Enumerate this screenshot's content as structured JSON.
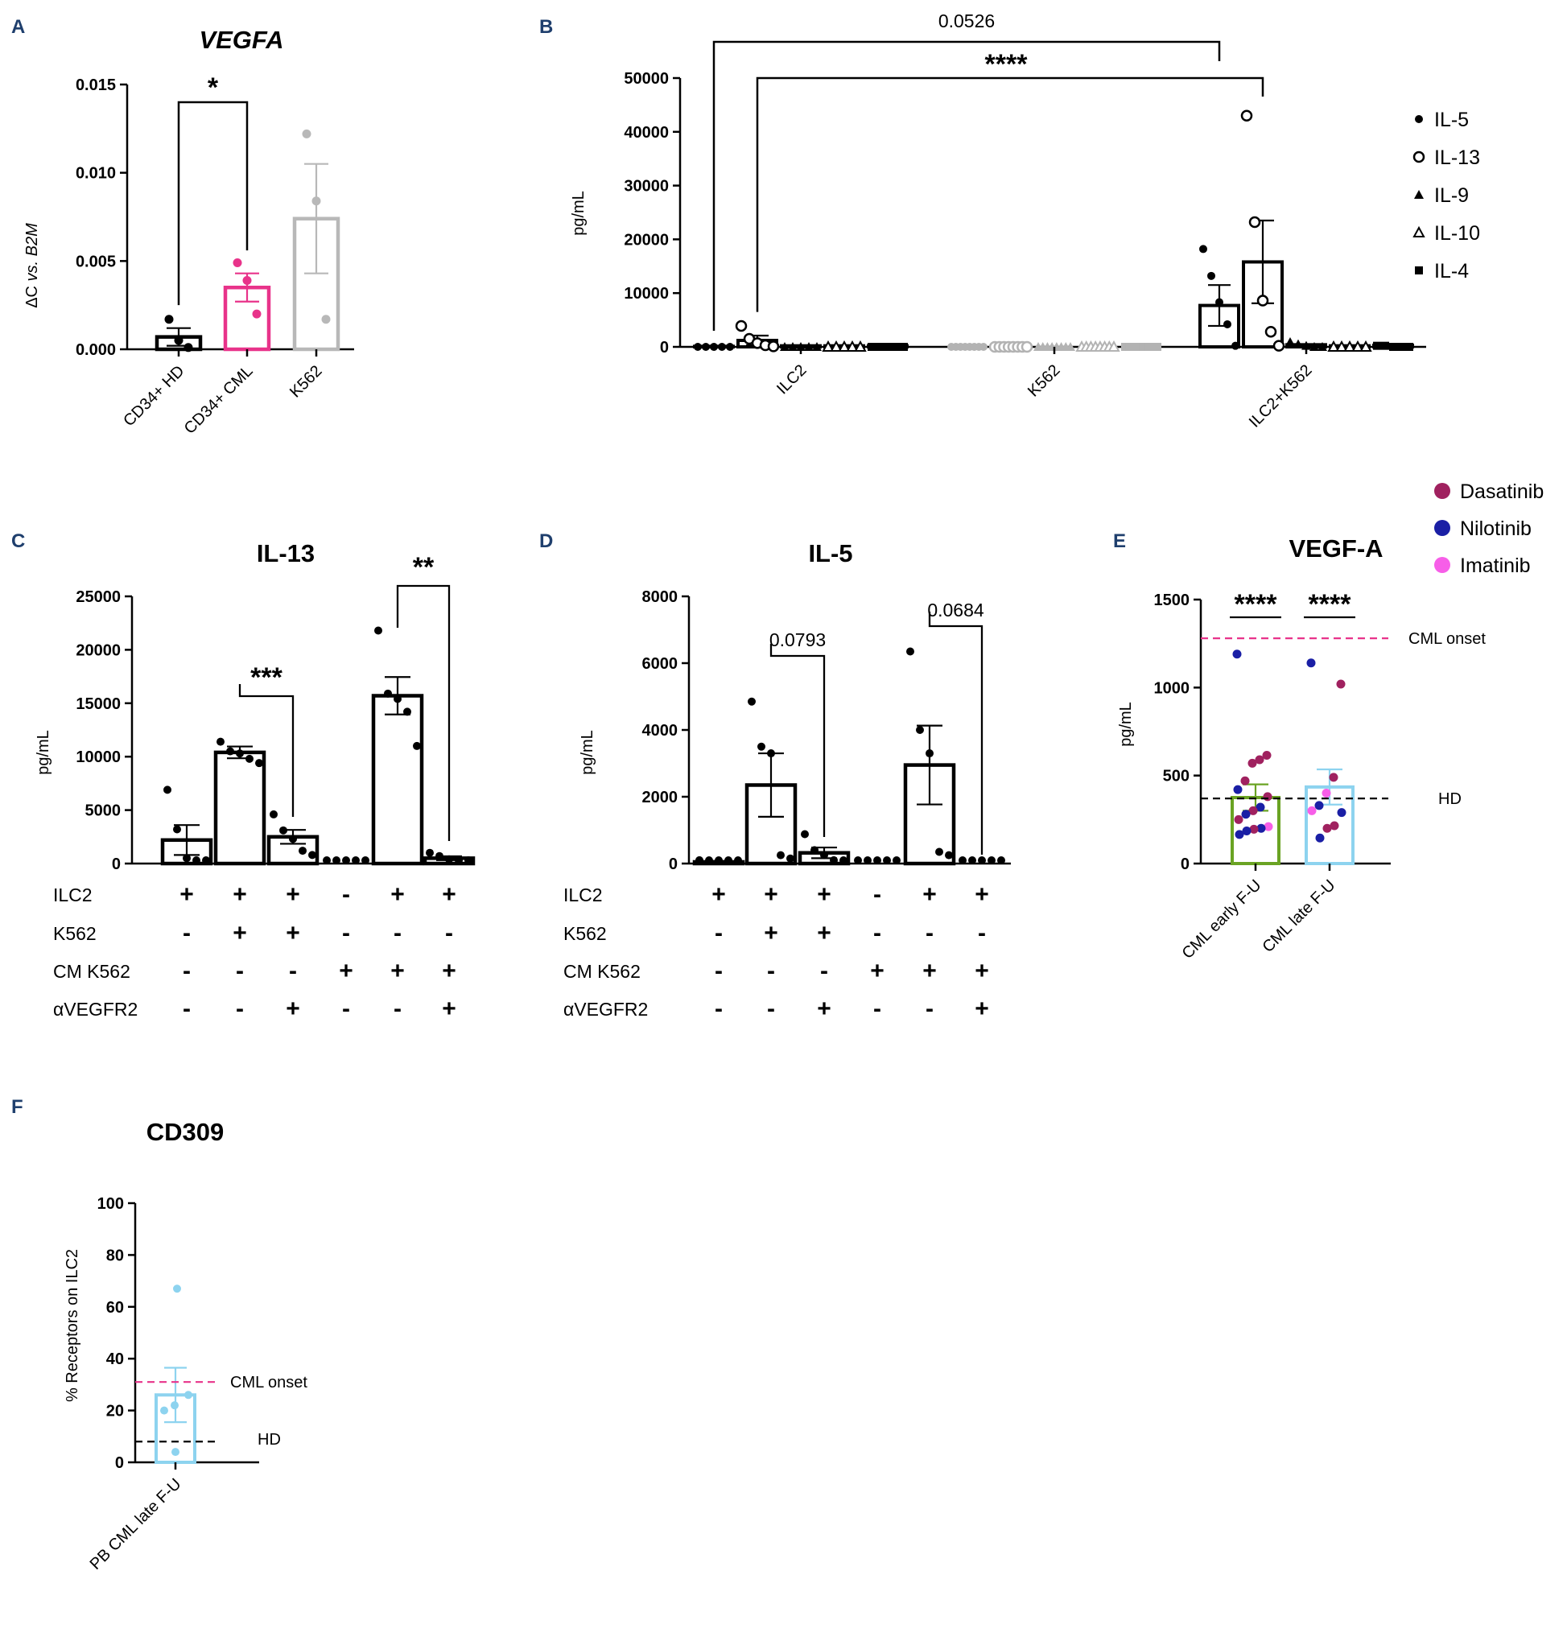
{
  "panel_labels": [
    "A",
    "B",
    "C",
    "D",
    "E",
    "F"
  ],
  "chart_data": [
    {
      "panel": "A",
      "type": "bar",
      "title": "VEGFA",
      "ylabel": "ΔC vs. B2M",
      "ylabel_parts": [
        "ΔC ",
        "vs. ",
        "B2M"
      ],
      "ylim": [
        0,
        0.015
      ],
      "yticks": [
        "0.000",
        "0.005",
        "0.010",
        "0.015"
      ],
      "categories": [
        "CD34+ HD",
        "CD34+ CML",
        "K562"
      ],
      "colors": [
        "#000000",
        "#e8338a",
        "#b8b8b8"
      ],
      "values": [
        0.0007,
        0.0035,
        0.0074
      ],
      "errors": [
        0.0005,
        0.0008,
        0.0031
      ],
      "points": [
        [
          0.0017,
          0.0005,
          0.0001
        ],
        [
          0.0049,
          0.0039,
          0.002
        ],
        [
          0.0122,
          0.0084,
          0.0017
        ]
      ],
      "significance": [
        {
          "from": 0,
          "to": 1,
          "label": "*"
        }
      ]
    },
    {
      "panel": "B",
      "type": "bar",
      "title": "",
      "ylabel": "pg/mL",
      "ylim": [
        0,
        50000
      ],
      "yticks": [
        "0",
        "10000",
        "20000",
        "30000",
        "40000",
        "50000"
      ],
      "categories": [
        "ILC2",
        "K562",
        "ILC2+K562"
      ],
      "series": [
        {
          "name": "IL-5",
          "marker": "filled-circle",
          "values": [
            100,
            0,
            7700
          ],
          "errors": [
            50,
            0,
            3800
          ],
          "points": [
            [
              0,
              0,
              0,
              0,
              0
            ],
            [
              0,
              0,
              0,
              0,
              0,
              0,
              0,
              0
            ],
            [
              18200,
              13200,
              8300,
              4200,
              200
            ]
          ]
        },
        {
          "name": "IL-13",
          "marker": "open-circle",
          "values": [
            1200,
            0,
            15800
          ],
          "errors": [
            900,
            0,
            7700
          ],
          "points": [
            [
              3900,
              1500,
              700,
              300,
              100
            ],
            [
              0,
              0,
              0,
              0,
              0,
              0,
              0,
              0
            ],
            [
              43000,
              23200,
              8600,
              2800,
              200
            ]
          ]
        },
        {
          "name": "IL-9",
          "marker": "filled-triangle",
          "values": [
            200,
            0,
            400
          ],
          "errors": [
            0,
            0,
            0
          ],
          "points": [
            [
              0,
              0,
              0,
              0,
              0
            ],
            [
              0,
              0,
              0,
              0,
              0,
              0,
              0,
              0
            ],
            [
              900,
              500,
              200,
              0,
              0
            ]
          ]
        },
        {
          "name": "IL-10",
          "marker": "open-triangle",
          "values": [
            200,
            0,
            200
          ],
          "errors": [
            0,
            0,
            0
          ],
          "points": [
            [
              0,
              0,
              0,
              0,
              0
            ],
            [
              0,
              0,
              0,
              0,
              0,
              0,
              0,
              0
            ],
            [
              0,
              0,
              0,
              0,
              0
            ]
          ]
        },
        {
          "name": "IL-4",
          "marker": "filled-square",
          "values": [
            200,
            0,
            300
          ],
          "errors": [
            0,
            0,
            0
          ],
          "points": [
            [
              0,
              0,
              0,
              0,
              0
            ],
            [
              0,
              0,
              0,
              0,
              0,
              0,
              0,
              0
            ],
            [
              200,
              200,
              0,
              0,
              0
            ]
          ]
        }
      ],
      "significance": [
        {
          "from": "ILC2 IL-5",
          "to": "ILC2+K562 IL-5",
          "label": "0.0526"
        },
        {
          "from": "ILC2 IL-13",
          "to": "ILC2+K562 IL-13",
          "label": "****"
        }
      ]
    },
    {
      "panel": "C",
      "type": "bar",
      "title": "IL-13",
      "ylabel": "pg/mL",
      "ylim": [
        0,
        25000
      ],
      "yticks": [
        "0",
        "5000",
        "10000",
        "15000",
        "20000",
        "25000"
      ],
      "values": [
        2200,
        10400,
        2500,
        0,
        15700,
        500
      ],
      "errors": [
        1400,
        550,
        650,
        0,
        1750,
        180
      ],
      "points": [
        [
          6900,
          3200,
          500,
          300,
          100
        ],
        [
          11400,
          10500,
          10300,
          9800,
          9400
        ],
        [
          4600,
          3100,
          2300,
          1200,
          800
        ],
        [
          0,
          0,
          0,
          0,
          0
        ],
        [
          21800,
          15900,
          15400,
          14200,
          11000
        ],
        [
          1000,
          700,
          400,
          200,
          100
        ]
      ],
      "significance": [
        {
          "from": 1,
          "to": 2,
          "label": "***"
        },
        {
          "from": 4,
          "to": 5,
          "label": "**"
        }
      ],
      "condition_rows": [
        {
          "label": "ILC2",
          "signs": [
            "+",
            "+",
            "+",
            "-",
            "+",
            "+"
          ]
        },
        {
          "label": "K562",
          "signs": [
            "-",
            "+",
            "+",
            "-",
            "-",
            "-"
          ]
        },
        {
          "label": "CM K562",
          "signs": [
            "-",
            "-",
            "-",
            "+",
            "+",
            "+"
          ]
        },
        {
          "label": "αVEGFR2",
          "signs": [
            "-",
            "-",
            "+",
            "-",
            "-",
            "+"
          ]
        }
      ]
    },
    {
      "panel": "D",
      "type": "bar",
      "title": "IL-5",
      "ylabel": "pg/mL",
      "ylim": [
        0,
        8000
      ],
      "yticks": [
        "0",
        "2000",
        "4000",
        "6000",
        "8000"
      ],
      "values": [
        50,
        2350,
        320,
        0,
        2950,
        0
      ],
      "errors": [
        30,
        950,
        160,
        0,
        1180,
        0
      ],
      "points": [
        [
          100,
          50,
          20,
          0,
          0
        ],
        [
          4850,
          3500,
          3300,
          250,
          150
        ],
        [
          880,
          400,
          250,
          100,
          50
        ],
        [
          0,
          0,
          0,
          0,
          0
        ],
        [
          6350,
          4000,
          3300,
          350,
          250
        ],
        [
          0,
          0,
          0,
          0,
          0
        ]
      ],
      "significance": [
        {
          "from": 1,
          "to": 2,
          "label": "0.0793"
        },
        {
          "from": 4,
          "to": 5,
          "label": "0.0684"
        }
      ],
      "condition_rows": [
        {
          "label": "ILC2",
          "signs": [
            "+",
            "+",
            "+",
            "-",
            "+",
            "+"
          ]
        },
        {
          "label": "K562",
          "signs": [
            "-",
            "+",
            "+",
            "-",
            "-",
            "-"
          ]
        },
        {
          "label": "CM K562",
          "signs": [
            "-",
            "-",
            "-",
            "+",
            "+",
            "+"
          ]
        },
        {
          "label": "αVEGFR2",
          "signs": [
            "-",
            "-",
            "+",
            "-",
            "-",
            "+"
          ]
        }
      ]
    },
    {
      "panel": "E",
      "type": "bar",
      "title": "VEGF-A",
      "ylabel": "pg/mL",
      "ylim": [
        0,
        1500
      ],
      "yticks": [
        "0",
        "500",
        "1000",
        "1500"
      ],
      "categories": [
        "CML early F-U",
        "CML late F-U"
      ],
      "bar_colors": [
        "#6aa323",
        "#8dd3ef"
      ],
      "values": [
        375,
        435
      ],
      "errors": [
        75,
        100
      ],
      "points": [
        [
          {
            "y": 1190,
            "drug": "Nilotinib"
          },
          {
            "y": 615,
            "drug": "Dasatinib"
          },
          {
            "y": 590,
            "drug": "Dasatinib"
          },
          {
            "y": 570,
            "drug": "Dasatinib"
          },
          {
            "y": 470,
            "drug": "Dasatinib"
          },
          {
            "y": 420,
            "drug": "Nilotinib"
          },
          {
            "y": 380,
            "drug": "Dasatinib"
          },
          {
            "y": 320,
            "drug": "Nilotinib"
          },
          {
            "y": 300,
            "drug": "Dasatinib"
          },
          {
            "y": 280,
            "drug": "Nilotinib"
          },
          {
            "y": 250,
            "drug": "Dasatinib"
          },
          {
            "y": 210,
            "drug": "Imatinib"
          },
          {
            "y": 200,
            "drug": "Nilotinib"
          },
          {
            "y": 195,
            "drug": "Dasatinib"
          },
          {
            "y": 185,
            "drug": "Nilotinib"
          },
          {
            "y": 165,
            "drug": "Nilotinib"
          }
        ],
        [
          {
            "y": 1140,
            "drug": "Nilotinib"
          },
          {
            "y": 1020,
            "drug": "Dasatinib"
          },
          {
            "y": 490,
            "drug": "Dasatinib"
          },
          {
            "y": 400,
            "drug": "Imatinib"
          },
          {
            "y": 330,
            "drug": "Nilotinib"
          },
          {
            "y": 300,
            "drug": "Imatinib"
          },
          {
            "y": 290,
            "drug": "Nilotinib"
          },
          {
            "y": 215,
            "drug": "Dasatinib"
          },
          {
            "y": 200,
            "drug": "Dasatinib"
          },
          {
            "y": 145,
            "drug": "Nilotinib"
          }
        ]
      ],
      "ref_lines": [
        {
          "label": "CML onset",
          "value": 1280,
          "color": "#e8338a"
        },
        {
          "label": "HD",
          "value": 370,
          "color": "#000000"
        }
      ],
      "significance": [
        {
          "group": 0,
          "label": "****"
        },
        {
          "group": 1,
          "label": "****"
        }
      ],
      "legend": [
        {
          "name": "Dasatinib",
          "color": "#a0215f"
        },
        {
          "name": "Nilotinib",
          "color": "#1a1fa5"
        },
        {
          "name": "Imatinib",
          "color": "#f75ee8"
        }
      ]
    },
    {
      "panel": "F",
      "type": "bar",
      "title": "CD309",
      "ylabel": "% Receptors on ILC2",
      "ylim": [
        0,
        100
      ],
      "yticks": [
        "0",
        "20",
        "40",
        "60",
        "80",
        "100"
      ],
      "categories": [
        "PB CML late F-U"
      ],
      "bar_color": "#8dd3ef",
      "values": [
        26
      ],
      "errors": [
        10.5
      ],
      "points": [
        67,
        26,
        22,
        20,
        4
      ],
      "ref_lines": [
        {
          "label": "CML onset",
          "value": 31,
          "color": "#e8338a"
        },
        {
          "label": "HD",
          "value": 8,
          "color": "#000000"
        }
      ]
    }
  ]
}
